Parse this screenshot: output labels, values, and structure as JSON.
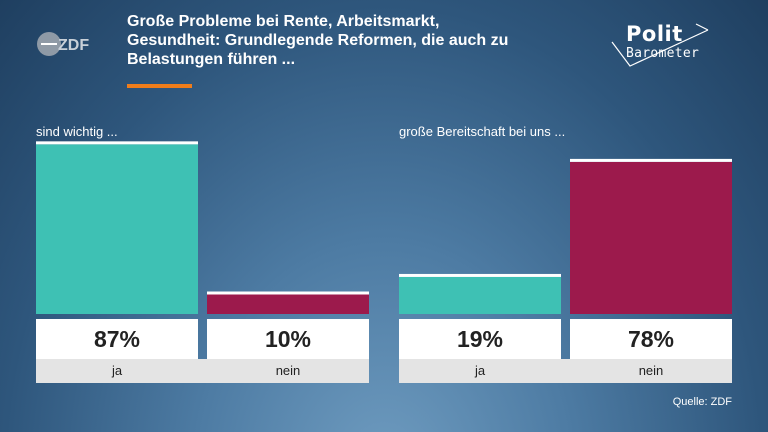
{
  "headline": {
    "lines": [
      "Große Probleme bei Rente, Arbeitsmarkt,",
      "Gesundheit: Grundlegende Reformen, die auch zu",
      "Belastungen führen ..."
    ]
  },
  "logo": {
    "brand": "ZDF",
    "program_line1": "Polit",
    "program_line2": "Barometer"
  },
  "colors": {
    "yes": "#3ec1b4",
    "no": "#9c1a4c",
    "accent": "#f07d1a"
  },
  "source": "Quelle: ZDF",
  "chart_data": [
    {
      "type": "bar",
      "title": "sind wichtig ...",
      "categories": [
        "ja",
        "nein"
      ],
      "values": [
        87,
        10
      ],
      "value_labels": [
        "87%",
        "10%"
      ],
      "ylim": [
        0,
        100
      ],
      "unit": "%"
    },
    {
      "type": "bar",
      "title": "große Bereitschaft bei uns ...",
      "categories": [
        "ja",
        "nein"
      ],
      "values": [
        19,
        78
      ],
      "value_labels": [
        "19%",
        "78%"
      ],
      "ylim": [
        0,
        100
      ],
      "unit": "%"
    }
  ]
}
